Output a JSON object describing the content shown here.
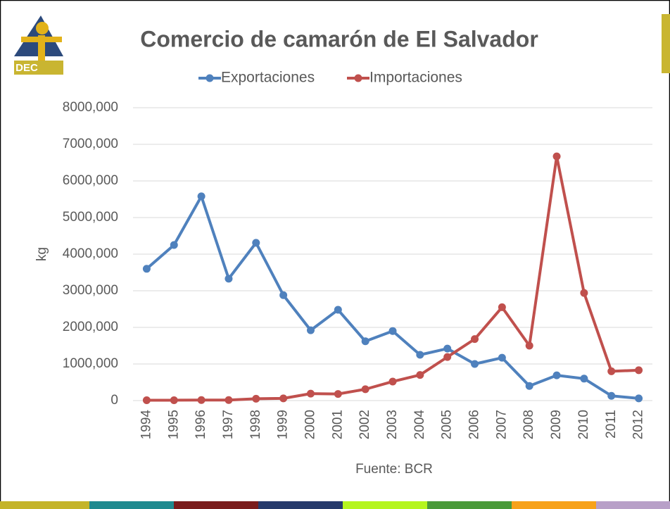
{
  "logo": {
    "name": "FUSADES",
    "label": "DEC"
  },
  "chart_data": {
    "type": "line",
    "title": "Comercio de camarón de El Salvador",
    "y_label": "kg",
    "source": "Fuente:  BCR",
    "categories": [
      "1994",
      "1995",
      "1996",
      "1997",
      "1998",
      "1999",
      "2000",
      "2001",
      "2002",
      "2003",
      "2004",
      "2005",
      "2006",
      "2007",
      "2008",
      "2009",
      "2010",
      "2011",
      "2012"
    ],
    "series": [
      {
        "name": "Exportaciones",
        "color": "#4f81bd",
        "values": [
          3600000,
          4250000,
          5580000,
          3330000,
          4310000,
          2880000,
          1920000,
          2480000,
          1620000,
          1900000,
          1250000,
          1420000,
          1000000,
          1170000,
          400000,
          690000,
          600000,
          130000,
          60000
        ]
      },
      {
        "name": "Importaciones",
        "color": "#c0504d",
        "values": [
          10000,
          10000,
          15000,
          15000,
          50000,
          60000,
          190000,
          180000,
          310000,
          520000,
          700000,
          1190000,
          1680000,
          2550000,
          1500000,
          6670000,
          2940000,
          800000,
          830000
        ]
      }
    ],
    "ylim": [
      0,
      8000000
    ],
    "yticks": [
      0,
      {
        "value": 1000000,
        "label": "1000,000"
      },
      {
        "value": 2000000,
        "label": "2000,000"
      },
      {
        "value": 3000000,
        "label": "3000,000"
      },
      {
        "value": 4000000,
        "label": "4000,000"
      },
      {
        "value": 5000000,
        "label": "5000,000"
      },
      {
        "value": 6000000,
        "label": "6000,000"
      },
      {
        "value": 7000000,
        "label": "7000,000"
      },
      {
        "value": 8000000,
        "label": "8000,000"
      }
    ],
    "grid": true,
    "legend": "top"
  }
}
